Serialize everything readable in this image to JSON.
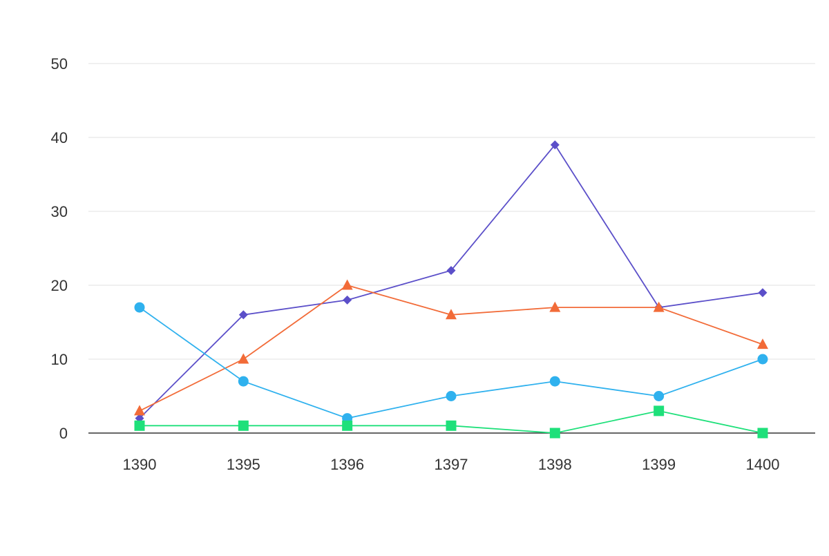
{
  "chart_data": {
    "type": "line",
    "title": "",
    "xlabel": "",
    "ylabel": "",
    "categories": [
      "1390",
      "1395",
      "1396",
      "1397",
      "1398",
      "1399",
      "1400"
    ],
    "ylim": [
      0,
      50
    ],
    "yticks": [
      0,
      10,
      20,
      30,
      40,
      50
    ],
    "grid": true,
    "legend": "none",
    "series": [
      {
        "marker": "diamond",
        "color": "#5b4fc9",
        "values": [
          2,
          16,
          18,
          22,
          39,
          17,
          19
        ]
      },
      {
        "marker": "triangle",
        "color": "#f26b38",
        "values": [
          3,
          10,
          20,
          16,
          17,
          17,
          12
        ]
      },
      {
        "marker": "circle",
        "color": "#2fb1ee",
        "values": [
          17,
          7,
          2,
          5,
          7,
          5,
          10
        ]
      },
      {
        "marker": "square",
        "color": "#1ee07a",
        "values": [
          1,
          1,
          1,
          1,
          0,
          3,
          0
        ]
      }
    ]
  }
}
